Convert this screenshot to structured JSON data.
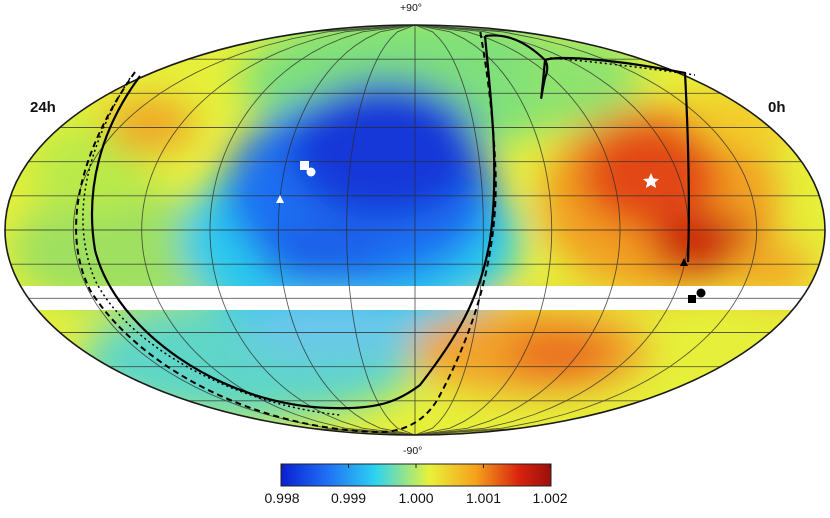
{
  "title_labels": {
    "ra_left": "24h",
    "ra_right": "0h",
    "dec_top": "+90°",
    "dec_bottom": "-90°"
  },
  "projection": "mollweide",
  "colorbar": {
    "ticks": [
      "0.998",
      "0.999",
      "1.000",
      "1.001",
      "1.002"
    ],
    "min": 0.998,
    "max": 1.002,
    "colors": [
      "#0a1fd0",
      "#1f6ff5",
      "#2dd3f0",
      "#e8f23a",
      "#f5a21c",
      "#d9240f",
      "#9b0f0a"
    ]
  },
  "map_colors": {
    "background": "#f2f22a",
    "deficit": "#1a45e6",
    "excess": "#d9300f",
    "masked_band": "#ffffff"
  },
  "markers": [
    {
      "name": "white-square-marker",
      "shape": "square",
      "color": "#ffffff"
    },
    {
      "name": "white-circle-marker",
      "shape": "circle",
      "color": "#ffffff"
    },
    {
      "name": "white-triangle-marker",
      "shape": "triangle",
      "color": "#ffffff"
    },
    {
      "name": "white-star-marker",
      "shape": "star",
      "color": "#ffffff"
    },
    {
      "name": "black-triangle-marker",
      "shape": "triangle",
      "color": "#000000"
    },
    {
      "name": "black-square-marker",
      "shape": "square",
      "color": "#000000"
    },
    {
      "name": "black-circle-marker",
      "shape": "circle",
      "color": "#000000"
    }
  ]
}
